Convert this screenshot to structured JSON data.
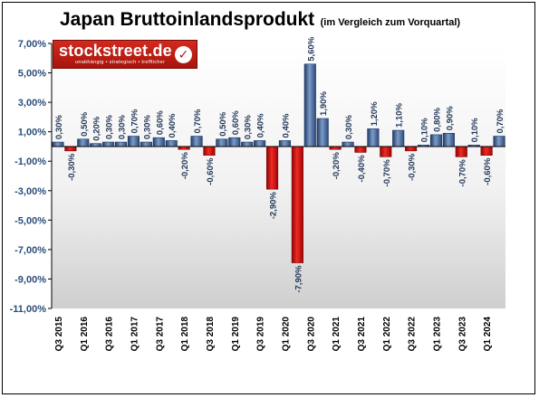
{
  "header": {
    "title": "Japan Bruttoinlandsprodukt",
    "subtitle": "(im Vergleich zum Vorquartal)"
  },
  "logo": {
    "name": "stockstreet.de",
    "tagline": "unabhängig • strategisch • trefflicher"
  },
  "colors": {
    "positive": "#5a7fb5",
    "negative": "#e0141a"
  },
  "chart_data": {
    "type": "bar",
    "title": "Japan Bruttoinlandsprodukt",
    "subtitle": "(im Vergleich zum Vorquartal)",
    "ylim": [
      -11,
      7
    ],
    "yticks": [
      7,
      5,
      3,
      1,
      -1,
      -3,
      -5,
      -7,
      -9,
      -11
    ],
    "ytick_labels": [
      "7,00%",
      "5,00%",
      "3,00%",
      "1,00%",
      "-1,00%",
      "-3,00%",
      "-5,00%",
      "-7,00%",
      "-9,00%",
      "-11,00%"
    ],
    "grid": false,
    "legend": "none",
    "category_labels": [
      "Q3 2015",
      "Q1 2016",
      "Q3 2016",
      "Q1 2017",
      "Q3 2017",
      "Q1 2018",
      "Q3 2018",
      "Q1 2019",
      "Q3 2019",
      "Q1 2020",
      "Q3 2020",
      "Q1 2021",
      "Q3 2021",
      "Q1 2022",
      "Q3 2022",
      "Q1 2023",
      "Q3 2023",
      "Q1 2024"
    ],
    "values": [
      0.3,
      -0.3,
      0.5,
      0.2,
      0.3,
      0.3,
      0.7,
      0.3,
      0.6,
      0.4,
      -0.2,
      0.7,
      -0.6,
      0.5,
      0.6,
      0.3,
      0.4,
      -2.9,
      0.4,
      -7.9,
      5.6,
      1.9,
      -0.2,
      0.3,
      -0.4,
      1.2,
      -0.7,
      1.1,
      -0.3,
      0.1,
      0.8,
      0.9,
      -0.7,
      0.1,
      -0.6,
      0.7
    ],
    "value_labels": [
      "0,30%",
      "-0,30%",
      "0,50%",
      "0,20%",
      "0,30%",
      "0,30%",
      "0,70%",
      "0,30%",
      "0,60%",
      "0,40%",
      "-0,20%",
      "0,70%",
      "-0,60%",
      "0,50%",
      "0,60%",
      "0,30%",
      "0,40%",
      "-2,90%",
      "0,40%",
      "-7,90%",
      "5,60%",
      "1,90%",
      "-0,20%",
      "0,30%",
      "-0,40%",
      "1,20%",
      "-0,70%",
      "1,10%",
      "-0,30%",
      "0,10%",
      "0,80%",
      "0,90%",
      "-0,70%",
      "0,10%",
      "-0,60%",
      "0,70%"
    ]
  }
}
